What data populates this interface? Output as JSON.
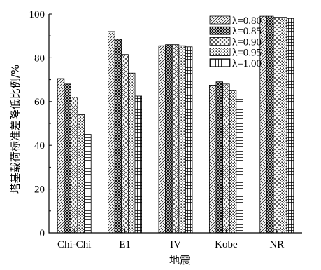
{
  "chart_data": {
    "type": "bar",
    "categories": [
      "Chi-Chi",
      "E1",
      "IV",
      "Kobe",
      "NR"
    ],
    "series": [
      {
        "name": "λ=0.80",
        "values": [
          70.5,
          92.0,
          85.5,
          67.5,
          99.0
        ]
      },
      {
        "name": "λ=0.85",
        "values": [
          68.0,
          88.5,
          86.0,
          69.0,
          99.0
        ]
      },
      {
        "name": "λ=0.90",
        "values": [
          62.0,
          81.5,
          86.0,
          68.0,
          98.5
        ]
      },
      {
        "name": "λ=0.95",
        "values": [
          54.0,
          73.0,
          85.5,
          65.0,
          98.5
        ]
      },
      {
        "name": "λ=1.00",
        "values": [
          45.0,
          62.5,
          85.0,
          61.0,
          98.0
        ]
      }
    ],
    "xlabel": "地震",
    "ylabel": "塔基载荷标准差降低比例/%",
    "ylim": [
      0,
      100
    ],
    "yticks": [
      0,
      20,
      40,
      60,
      80,
      100
    ],
    "legend_position": "top-right",
    "grid": false
  }
}
